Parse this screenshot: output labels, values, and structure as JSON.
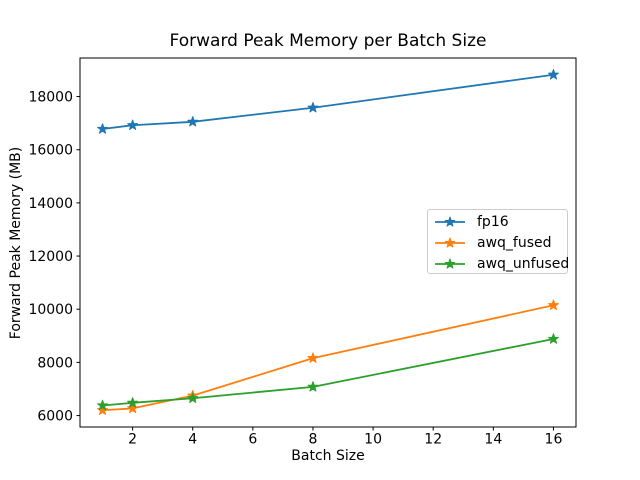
{
  "chart_data": {
    "type": "line",
    "title": "Forward Peak Memory per Batch Size",
    "xlabel": "Batch Size",
    "ylabel": "Forward Peak Memory (MB)",
    "x": [
      1,
      2,
      4,
      8,
      16
    ],
    "series": [
      {
        "name": "fp16",
        "color": "#1f77b4",
        "marker": "star",
        "values": [
          16780,
          16920,
          17050,
          17580,
          18820
        ]
      },
      {
        "name": "awq_fused",
        "color": "#ff7f0e",
        "marker": "star",
        "values": [
          6200,
          6270,
          6750,
          8160,
          10150
        ]
      },
      {
        "name": "awq_unfused",
        "color": "#2ca02c",
        "marker": "star",
        "values": [
          6380,
          6480,
          6650,
          7080,
          8880
        ]
      }
    ],
    "xticks": [
      2,
      4,
      6,
      8,
      10,
      12,
      14,
      16
    ],
    "yticks": [
      6000,
      8000,
      10000,
      12000,
      14000,
      16000,
      18000
    ],
    "xlim": [
      0.25,
      16.75
    ],
    "ylim": [
      5570,
      19450
    ],
    "grid": false,
    "legend_position": "center-right",
    "axes_color": "#000000",
    "background_color": "#ffffff"
  }
}
